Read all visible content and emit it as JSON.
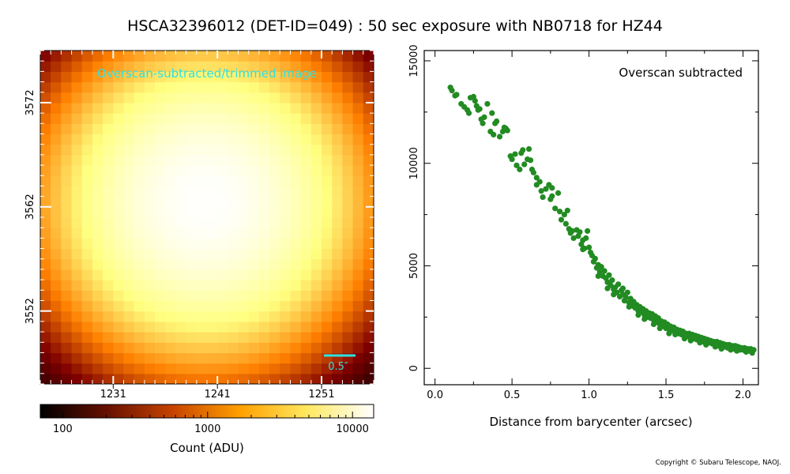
{
  "title": "HSCA32396012 (DET-ID=049) :  50 sec exposure with NB0718 for HZ44",
  "copyright": "Copyright © Subaru Telescope, NAOJ.",
  "colors": {
    "marker": "#228b22",
    "overlay_text": "#2fe0e0",
    "colormap": "afmhot"
  },
  "chart_data": [
    {
      "type": "heatmap",
      "title": "",
      "annotation": "Overscan-subtracted/trimmed image",
      "scale_bar_label": "0.5″",
      "x_ticks": [
        "1231",
        "1241",
        "1251"
      ],
      "y_ticks": [
        "3552",
        "3562",
        "3572"
      ],
      "xlim": [
        1224,
        1256
      ],
      "ylim": [
        3545,
        3577
      ],
      "peak_center": [
        1239.8,
        3562.5
      ],
      "peak_value": 13700,
      "colorbar": {
        "label": "Count (ADU)",
        "scale": "log",
        "range": [
          70,
          14000
        ],
        "ticks": [
          "100",
          "1000",
          "10000"
        ]
      }
    },
    {
      "type": "scatter",
      "annotation": "Overscan subtracted",
      "xlabel": "Distance from barycenter (arcsec)",
      "ylabel": "",
      "xlim": [
        -0.07,
        2.1
      ],
      "ylim": [
        -800,
        15500
      ],
      "x_ticks": [
        "0.0",
        "0.5",
        "1.0",
        "1.5",
        "2.0"
      ],
      "y_ticks": [
        "0",
        "5000",
        "10000",
        "15000"
      ],
      "x_tick_values": [
        0.0,
        0.5,
        1.0,
        1.5,
        2.0
      ],
      "y_tick_values": [
        0,
        5000,
        10000,
        15000
      ],
      "profile_model": "approximately gaussian, I(r) = 13900*exp(-r^2/2.5) + 300",
      "points": [
        [
          0.1,
          13700
        ],
        [
          0.11,
          13550
        ],
        [
          0.13,
          13300
        ],
        [
          0.14,
          13350
        ],
        [
          0.17,
          12900
        ],
        [
          0.19,
          12750
        ],
        [
          0.21,
          12600
        ],
        [
          0.22,
          12450
        ],
        [
          0.25,
          13250
        ],
        [
          0.26,
          13050
        ],
        [
          0.27,
          12800
        ],
        [
          0.28,
          12600
        ],
        [
          0.3,
          12150
        ],
        [
          0.31,
          11950
        ],
        [
          0.32,
          12250
        ],
        [
          0.34,
          12900
        ],
        [
          0.36,
          11550
        ],
        [
          0.38,
          11400
        ],
        [
          0.39,
          11950
        ],
        [
          0.4,
          12050
        ],
        [
          0.42,
          11300
        ],
        [
          0.44,
          11550
        ],
        [
          0.45,
          11750
        ],
        [
          0.47,
          11600
        ],
        [
          0.49,
          10350
        ],
        [
          0.5,
          10200
        ],
        [
          0.52,
          10450
        ],
        [
          0.53,
          9900
        ],
        [
          0.55,
          9700
        ],
        [
          0.57,
          10650
        ],
        [
          0.58,
          9950
        ],
        [
          0.6,
          10200
        ],
        [
          0.61,
          10700
        ],
        [
          0.62,
          10150
        ],
        [
          0.63,
          9700
        ],
        [
          0.64,
          9550
        ],
        [
          0.66,
          8950
        ],
        [
          0.68,
          9100
        ],
        [
          0.69,
          8650
        ],
        [
          0.7,
          8350
        ],
        [
          0.72,
          8750
        ],
        [
          0.74,
          8950
        ],
        [
          0.75,
          8250
        ],
        [
          0.76,
          8400
        ],
        [
          0.78,
          7800
        ],
        [
          0.8,
          8550
        ],
        [
          0.81,
          7650
        ],
        [
          0.82,
          7250
        ],
        [
          0.84,
          7500
        ],
        [
          0.85,
          7050
        ],
        [
          0.87,
          6800
        ],
        [
          0.88,
          6600
        ],
        [
          0.89,
          6700
        ],
        [
          0.9,
          6350
        ],
        [
          0.92,
          6750
        ],
        [
          0.93,
          6450
        ],
        [
          0.94,
          6650
        ],
        [
          0.95,
          6050
        ],
        [
          0.96,
          6250
        ],
        [
          0.97,
          5850
        ],
        [
          0.98,
          6350
        ],
        [
          0.99,
          6700
        ],
        [
          1.0,
          5900
        ],
        [
          1.01,
          5650
        ],
        [
          1.02,
          5500
        ],
        [
          1.03,
          5200
        ],
        [
          1.04,
          5350
        ],
        [
          1.05,
          4900
        ],
        [
          1.06,
          5050
        ],
        [
          1.07,
          4700
        ],
        [
          1.08,
          4950
        ],
        [
          1.09,
          4500
        ],
        [
          1.1,
          4750
        ],
        [
          1.11,
          4400
        ],
        [
          1.12,
          4200
        ],
        [
          1.13,
          4550
        ],
        [
          1.14,
          4050
        ],
        [
          1.15,
          4300
        ],
        [
          1.16,
          3850
        ],
        [
          1.17,
          3950
        ],
        [
          1.18,
          3700
        ],
        [
          1.19,
          4100
        ],
        [
          1.2,
          3500
        ],
        [
          1.21,
          3800
        ],
        [
          1.22,
          3600
        ],
        [
          1.23,
          3300
        ],
        [
          1.24,
          3450
        ],
        [
          1.25,
          3700
        ],
        [
          1.26,
          3200
        ],
        [
          1.27,
          3400
        ],
        [
          1.28,
          3050
        ],
        [
          1.29,
          3250
        ],
        [
          1.3,
          2950
        ],
        [
          1.31,
          3100
        ],
        [
          1.32,
          2800
        ],
        [
          1.33,
          3000
        ],
        [
          1.34,
          2750
        ],
        [
          1.35,
          2900
        ],
        [
          1.36,
          2600
        ],
        [
          1.37,
          2800
        ],
        [
          1.38,
          2500
        ],
        [
          1.39,
          2700
        ],
        [
          1.4,
          2450
        ],
        [
          1.41,
          2650
        ],
        [
          1.42,
          2350
        ],
        [
          1.43,
          2550
        ],
        [
          1.44,
          2250
        ],
        [
          1.45,
          2450
        ],
        [
          1.46,
          2150
        ],
        [
          1.47,
          2300
        ],
        [
          1.48,
          2050
        ],
        [
          1.49,
          2250
        ],
        [
          1.5,
          1950
        ],
        [
          1.51,
          2150
        ],
        [
          1.52,
          1900
        ],
        [
          1.53,
          2050
        ],
        [
          1.54,
          1850
        ],
        [
          1.55,
          2000
        ],
        [
          1.56,
          1750
        ],
        [
          1.57,
          1900
        ],
        [
          1.58,
          1700
        ],
        [
          1.59,
          1850
        ],
        [
          1.6,
          1650
        ],
        [
          1.61,
          1800
        ],
        [
          1.62,
          1600
        ],
        [
          1.63,
          1700
        ],
        [
          1.64,
          1550
        ],
        [
          1.65,
          1700
        ],
        [
          1.66,
          1500
        ],
        [
          1.67,
          1650
        ],
        [
          1.68,
          1450
        ],
        [
          1.69,
          1600
        ],
        [
          1.7,
          1400
        ],
        [
          1.71,
          1550
        ],
        [
          1.72,
          1350
        ],
        [
          1.73,
          1500
        ],
        [
          1.74,
          1300
        ],
        [
          1.75,
          1450
        ],
        [
          1.76,
          1250
        ],
        [
          1.77,
          1400
        ],
        [
          1.78,
          1250
        ],
        [
          1.79,
          1350
        ],
        [
          1.8,
          1200
        ],
        [
          1.81,
          1300
        ],
        [
          1.82,
          1150
        ],
        [
          1.83,
          1300
        ],
        [
          1.84,
          1100
        ],
        [
          1.85,
          1250
        ],
        [
          1.86,
          1100
        ],
        [
          1.87,
          1200
        ],
        [
          1.88,
          1050
        ],
        [
          1.89,
          1150
        ],
        [
          1.9,
          1000
        ],
        [
          1.91,
          1150
        ],
        [
          1.92,
          1000
        ],
        [
          1.93,
          1100
        ],
        [
          1.94,
          950
        ],
        [
          1.95,
          1100
        ],
        [
          1.96,
          950
        ],
        [
          1.97,
          1050
        ],
        [
          1.98,
          900
        ],
        [
          1.99,
          1000
        ],
        [
          2.0,
          900
        ],
        [
          2.01,
          1000
        ],
        [
          2.02,
          850
        ],
        [
          2.03,
          950
        ],
        [
          2.04,
          850
        ],
        [
          2.05,
          950
        ],
        [
          2.06,
          850
        ],
        [
          2.07,
          900
        ],
        [
          1.12,
          3900
        ],
        [
          1.22,
          3900
        ],
        [
          1.32,
          2600
        ],
        [
          1.42,
          2150
        ],
        [
          1.52,
          1700
        ],
        [
          1.62,
          1450
        ],
        [
          1.72,
          1250
        ],
        [
          1.82,
          1050
        ],
        [
          1.92,
          900
        ],
        [
          2.02,
          800
        ],
        [
          0.96,
          5800
        ],
        [
          1.06,
          4500
        ],
        [
          1.16,
          3600
        ],
        [
          1.26,
          3000
        ],
        [
          1.36,
          2400
        ],
        [
          1.46,
          1950
        ],
        [
          1.56,
          1650
        ],
        [
          1.66,
          1350
        ],
        [
          1.76,
          1150
        ],
        [
          1.86,
          950
        ],
        [
          1.96,
          850
        ],
        [
          2.06,
          750
        ],
        [
          0.86,
          7700
        ],
        [
          0.76,
          8800
        ],
        [
          0.66,
          9300
        ],
        [
          0.56,
          10500
        ],
        [
          0.46,
          11700
        ],
        [
          0.37,
          12450
        ],
        [
          0.29,
          12650
        ],
        [
          0.23,
          13200
        ]
      ]
    }
  ]
}
